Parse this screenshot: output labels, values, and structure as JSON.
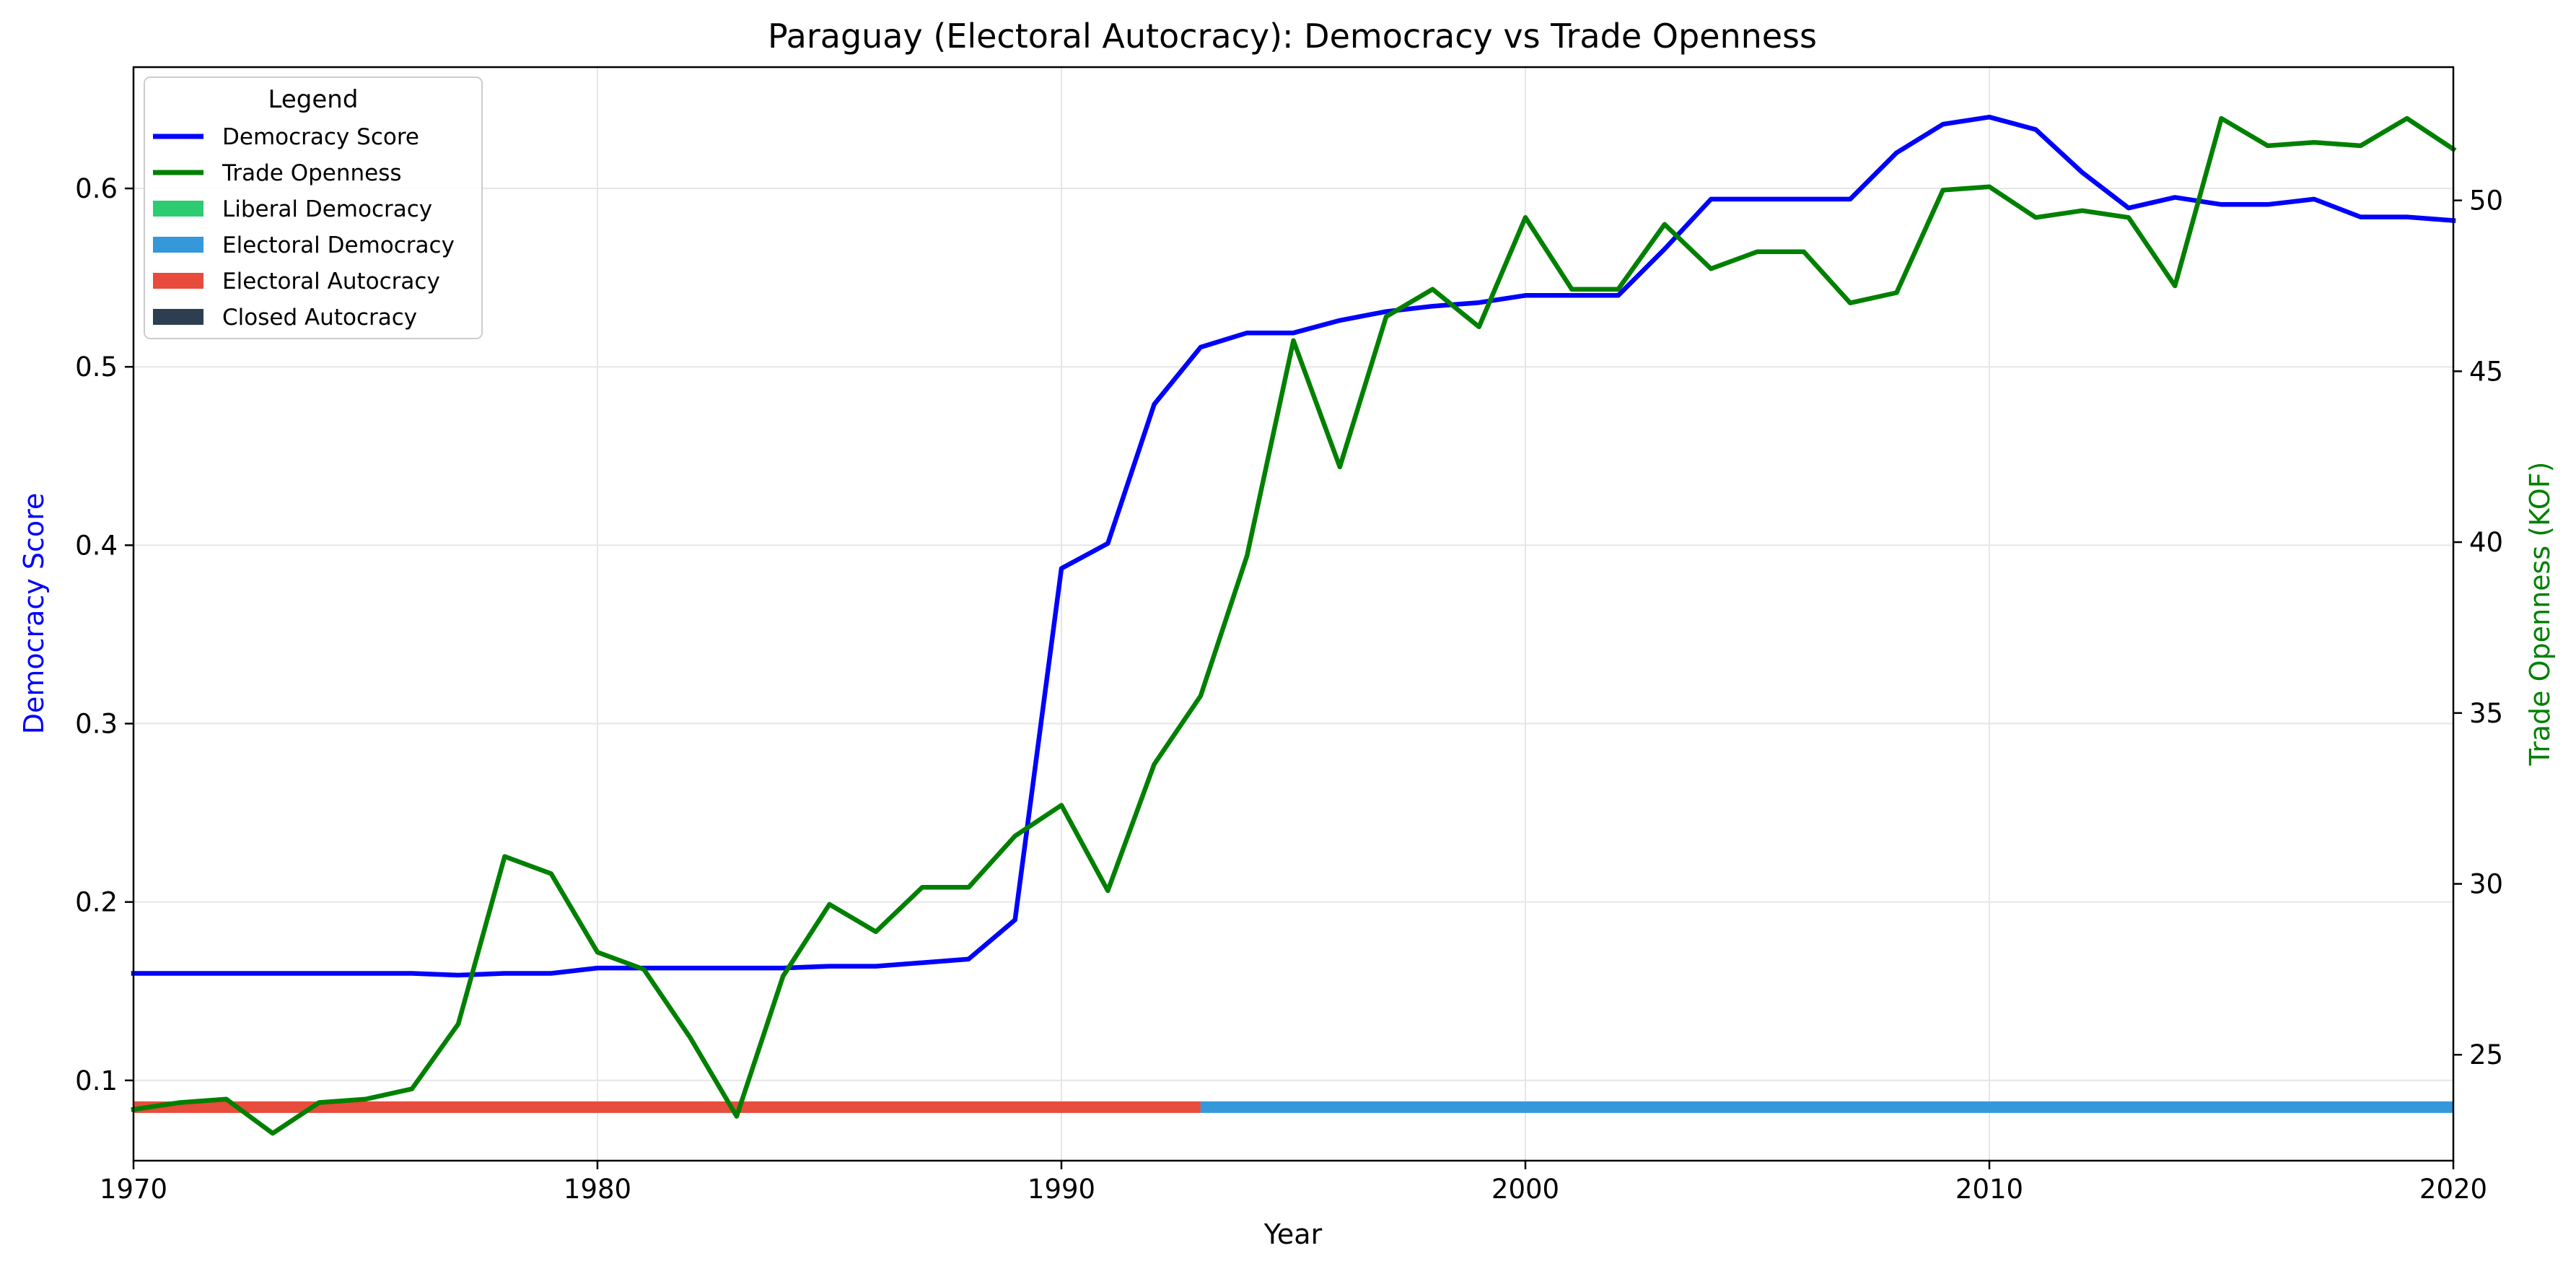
{
  "chart_data": {
    "type": "line",
    "title": "Paraguay (Electoral Autocracy): Democracy vs Trade Openness",
    "xlabel": "Year",
    "ylabel_left": "Democracy Score",
    "ylabel_right": "Trade Openness (KOF)",
    "xlim": [
      1970,
      2020
    ],
    "ylim_left": [
      0.055,
      0.668
    ],
    "ylim_right": [
      21.9,
      53.9
    ],
    "x_ticks": [
      1970,
      1980,
      1990,
      2000,
      2010,
      2020
    ],
    "y_ticks_left": [
      0.1,
      0.2,
      0.3,
      0.4,
      0.5,
      0.6
    ],
    "y_ticks_right": [
      25,
      30,
      35,
      40,
      45,
      50
    ],
    "grid": true,
    "legend_placement": "top-left",
    "legend_title": "Legend",
    "colors": {
      "democracy": "#0000ff",
      "trade": "#008000",
      "liberal_democracy": "#2ecc71",
      "electoral_democracy": "#3498db",
      "electoral_autocracy": "#e74c3c",
      "closed_autocracy": "#2c3e50"
    },
    "legend": [
      {
        "label": "Democracy Score",
        "kind": "line",
        "color": "#0000ff"
      },
      {
        "label": "Trade Openness",
        "kind": "line",
        "color": "#008000"
      },
      {
        "label": "Liberal Democracy",
        "kind": "patch",
        "color": "#2ecc71"
      },
      {
        "label": "Electoral Democracy",
        "kind": "patch",
        "color": "#3498db"
      },
      {
        "label": "Electoral Autocracy",
        "kind": "patch",
        "color": "#e74c3c"
      },
      {
        "label": "Closed Autocracy",
        "kind": "patch",
        "color": "#2c3e50"
      }
    ],
    "series": [
      {
        "name": "Democracy Score",
        "axis": "left",
        "color": "#0000ff",
        "x": [
          1970,
          1971,
          1972,
          1973,
          1974,
          1975,
          1976,
          1977,
          1978,
          1979,
          1980,
          1981,
          1982,
          1983,
          1984,
          1985,
          1986,
          1987,
          1988,
          1989,
          1990,
          1991,
          1992,
          1993,
          1994,
          1995,
          1996,
          1997,
          1998,
          1999,
          2000,
          2001,
          2002,
          2003,
          2004,
          2005,
          2006,
          2007,
          2008,
          2009,
          2010,
          2011,
          2012,
          2013,
          2014,
          2015,
          2016,
          2017,
          2018,
          2019,
          2020
        ],
        "values": [
          0.16,
          0.16,
          0.16,
          0.16,
          0.16,
          0.16,
          0.16,
          0.159,
          0.16,
          0.16,
          0.163,
          0.163,
          0.163,
          0.163,
          0.163,
          0.164,
          0.164,
          0.166,
          0.168,
          0.19,
          0.387,
          0.401,
          0.479,
          0.511,
          0.519,
          0.519,
          0.526,
          0.531,
          0.534,
          0.536,
          0.54,
          0.54,
          0.54,
          0.566,
          0.594,
          0.594,
          0.594,
          0.594,
          0.62,
          0.636,
          0.64,
          0.633,
          0.609,
          0.589,
          0.595,
          0.591,
          0.591,
          0.594,
          0.584,
          0.584,
          0.582
        ]
      },
      {
        "name": "Trade Openness",
        "axis": "right",
        "color": "#008000",
        "x": [
          1970,
          1971,
          1972,
          1973,
          1974,
          1975,
          1976,
          1977,
          1978,
          1979,
          1980,
          1981,
          1982,
          1983,
          1984,
          1985,
          1986,
          1987,
          1988,
          1989,
          1990,
          1991,
          1992,
          1993,
          1994,
          1995,
          1996,
          1997,
          1998,
          1999,
          2000,
          2001,
          2002,
          2003,
          2004,
          2005,
          2006,
          2007,
          2008,
          2009,
          2010,
          2011,
          2012,
          2013,
          2014,
          2015,
          2016,
          2017,
          2018,
          2019,
          2020
        ],
        "values": [
          23.4,
          23.6,
          23.7,
          22.7,
          23.6,
          23.7,
          24.0,
          25.9,
          30.8,
          30.3,
          28.0,
          27.5,
          25.5,
          23.2,
          27.3,
          29.4,
          28.6,
          29.9,
          29.9,
          31.4,
          32.3,
          29.8,
          33.5,
          35.5,
          39.6,
          45.9,
          42.2,
          46.6,
          47.4,
          46.3,
          49.5,
          47.4,
          47.4,
          49.3,
          48.0,
          48.5,
          48.5,
          47.0,
          47.3,
          50.3,
          50.4,
          49.5,
          49.7,
          49.5,
          47.5,
          52.4,
          51.6,
          51.7,
          51.6,
          52.4,
          51.5
        ]
      }
    ],
    "regime_bands": [
      {
        "regime": "Electoral Autocracy",
        "color": "#e74c3c",
        "x_start": 1970,
        "x_end": 1993
      },
      {
        "regime": "Electoral Democracy",
        "color": "#3498db",
        "x_start": 1993,
        "x_end": 2020
      }
    ],
    "regime_band_level": 0.085
  }
}
